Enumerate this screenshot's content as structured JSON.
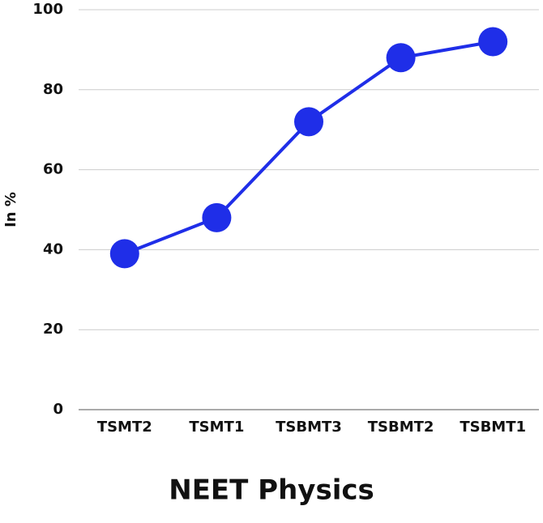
{
  "chart_data": {
    "type": "line",
    "title": "NEET Physics",
    "y_label": "In %",
    "categories": [
      "TSMT2",
      "TSMT1",
      "TSBMT3",
      "TSBMT2",
      "TSBMT1"
    ],
    "values": [
      39,
      48,
      72,
      88,
      92
    ],
    "color": "#1f2ee8",
    "ylim": [
      0,
      100
    ],
    "yticks": [
      0,
      20,
      40,
      60,
      80,
      100
    ],
    "grid": true
  }
}
